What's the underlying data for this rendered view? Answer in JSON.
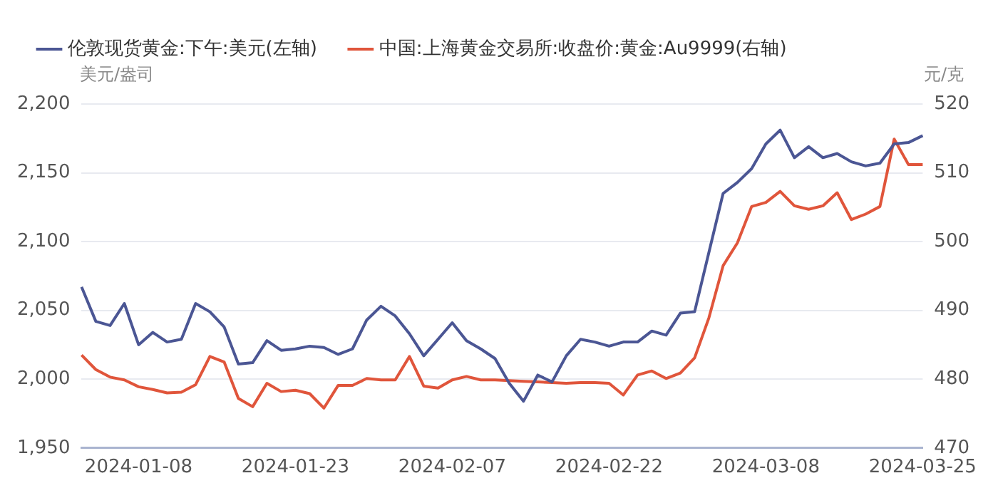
{
  "chart_data": {
    "type": "line",
    "ylabel": "美元/盎司",
    "y2label": "元/克",
    "categories": [
      null,
      null,
      null,
      null,
      "2024-01-08",
      null,
      null,
      null,
      null,
      null,
      null,
      null,
      null,
      null,
      null,
      "2024-01-23",
      null,
      null,
      null,
      null,
      null,
      null,
      null,
      null,
      null,
      null,
      "2024-02-07",
      null,
      null,
      null,
      null,
      null,
      null,
      null,
      null,
      null,
      null,
      "2024-02-22",
      null,
      null,
      null,
      null,
      null,
      null,
      null,
      null,
      null,
      null,
      "2024-03-08",
      null,
      null,
      null,
      null,
      null,
      null,
      null,
      null,
      null,
      null,
      "2024-03-25"
    ],
    "series": [
      {
        "name": "伦敦现货黄金:下午:美元(左轴)",
        "color": "#4b5694",
        "axis": "y",
        "values": [
          2067,
          2042,
          2039,
          2055,
          2025,
          2034,
          2027,
          2029,
          2055,
          2049,
          2038,
          2011,
          2012,
          2028,
          2021,
          2022,
          2024,
          2023,
          2018,
          2022,
          2043,
          2053,
          2046,
          2033,
          2017,
          2029,
          2041,
          2028,
          2022,
          2015,
          1997,
          1984,
          2003,
          1998,
          2017,
          2029,
          2027,
          2024,
          2027,
          2027,
          2035,
          2032,
          2048,
          2049,
          2092,
          2135,
          2143,
          2153,
          2171,
          2181,
          2161,
          2169,
          2161,
          2164,
          2158,
          2155,
          2157,
          2171,
          2172,
          2177
        ]
      },
      {
        "name": "中国:上海黄金交易所:收盘价:黄金:Au9999(右轴)",
        "color": "#e0553b",
        "axis": "y2",
        "values": [
          483.5,
          481.4,
          480.3,
          479.9,
          478.9,
          478.5,
          478.0,
          478.1,
          479.2,
          483.3,
          482.5,
          477.2,
          476.0,
          479.4,
          478.2,
          478.4,
          477.9,
          475.8,
          479.1,
          479.1,
          480.1,
          479.9,
          479.9,
          483.3,
          479.0,
          478.7,
          479.9,
          480.4,
          479.9,
          479.9,
          479.8,
          479.7,
          479.6,
          479.5,
          479.4,
          479.5,
          479.5,
          479.4,
          477.7,
          480.6,
          481.2,
          480.1,
          480.9,
          483.1,
          488.9,
          496.5,
          499.8,
          505.1,
          505.7,
          507.3,
          505.2,
          504.7,
          505.2,
          507.1,
          503.2,
          504.0,
          505.1,
          514.9,
          511.2,
          511.2
        ]
      }
    ],
    "ylim": [
      1950,
      2200
    ],
    "yticks": [
      {
        "value": 1950,
        "label": "1,950"
      },
      {
        "value": 2000,
        "label": "2,000"
      },
      {
        "value": 2050,
        "label": "2,050"
      },
      {
        "value": 2100,
        "label": "2,100"
      },
      {
        "value": 2150,
        "label": "2,150"
      },
      {
        "value": 2200,
        "label": "2,200"
      }
    ],
    "y2lim": [
      470,
      520
    ],
    "y2ticks": [
      470,
      480,
      490,
      500,
      510,
      520
    ],
    "grid": "y",
    "legend": "top left",
    "marker": "none",
    "line_style": "solid"
  }
}
